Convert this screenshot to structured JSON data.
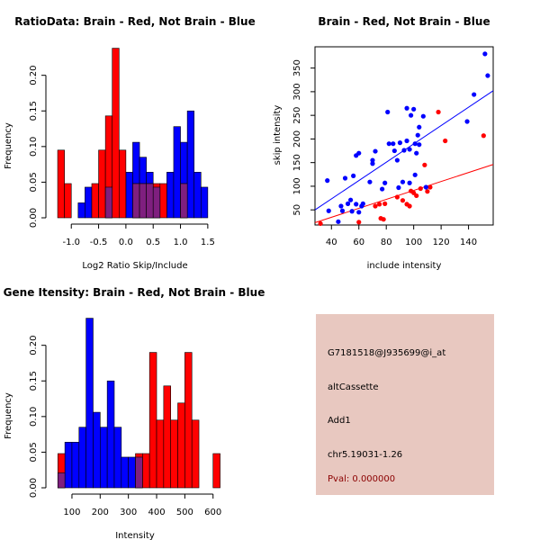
{
  "colors": {
    "brain": "#ff0000",
    "not_brain": "#0000ff",
    "overlap": "#7f1f7f",
    "info_panel": "#e8c8c0",
    "pval": "#8b0000"
  },
  "chart_data": [
    {
      "id": "ratio",
      "type": "bar",
      "title": "RatioData: Brain - Red, Not Brain - Blue",
      "xlabel": "Log2 Ratio Skip/Include",
      "ylabel": "Frequency",
      "xlim": [
        -1.35,
        1.7
      ],
      "ylim": [
        0,
        0.24
      ],
      "xticks": [
        -1.0,
        -0.5,
        0.0,
        0.5,
        1.0,
        1.5
      ],
      "xtick_labels": [
        "-1.0",
        "-0.5",
        "0.0",
        "0.5",
        "1.0",
        "1.5"
      ],
      "yticks": [
        0.0,
        0.05,
        0.1,
        0.15,
        0.2
      ],
      "ytick_labels": [
        "0.00",
        "0.05",
        "0.10",
        "0.15",
        "0.20"
      ],
      "bin_width": 0.125,
      "series": [
        {
          "name": "Brain",
          "color": "red",
          "bins": [
            [
              -1.25,
              0.095
            ],
            [
              -1.125,
              0.048
            ],
            [
              -0.625,
              0.048
            ],
            [
              -0.5,
              0.095
            ],
            [
              -0.375,
              0.143
            ],
            [
              -0.25,
              0.238
            ],
            [
              -0.125,
              0.095
            ],
            [
              0.125,
              0.048
            ],
            [
              0.25,
              0.048
            ],
            [
              0.375,
              0.048
            ],
            [
              0.5,
              0.048
            ],
            [
              0.625,
              0.048
            ],
            [
              1.0,
              0.048
            ]
          ]
        },
        {
          "name": "Not Brain",
          "color": "blue",
          "bins": [
            [
              -0.875,
              0.021
            ],
            [
              -0.75,
              0.043
            ],
            [
              -0.375,
              0.043
            ],
            [
              0.0,
              0.064
            ],
            [
              0.125,
              0.106
            ],
            [
              0.25,
              0.085
            ],
            [
              0.375,
              0.064
            ],
            [
              0.5,
              0.043
            ],
            [
              0.75,
              0.064
            ],
            [
              0.875,
              0.128
            ],
            [
              1.0,
              0.106
            ],
            [
              1.125,
              0.15
            ],
            [
              1.25,
              0.064
            ],
            [
              1.375,
              0.043
            ]
          ]
        }
      ]
    },
    {
      "id": "scatter",
      "type": "scatter",
      "title": "Brain - Red, Not Brain - Blue",
      "xlabel": "include intensity",
      "ylabel": "skip intensity",
      "xlim": [
        28,
        158
      ],
      "ylim": [
        18,
        395
      ],
      "xticks": [
        40,
        60,
        80,
        100,
        120,
        140
      ],
      "xtick_labels": [
        "40",
        "60",
        "80",
        "100",
        "120",
        "140"
      ],
      "yticks": [
        50,
        100,
        150,
        200,
        250,
        300,
        350
      ],
      "ytick_labels": [
        "50",
        "100",
        "150",
        "200",
        "250",
        "300",
        "350"
      ],
      "series": [
        {
          "name": "Brain",
          "color": "red",
          "points": [
            [
              32,
              21
            ],
            [
              60,
              24
            ],
            [
              76,
              32
            ],
            [
              78,
              30
            ],
            [
              72,
              58
            ],
            [
              75,
              62
            ],
            [
              79,
              63
            ],
            [
              88,
              77
            ],
            [
              92,
              70
            ],
            [
              95,
              62
            ],
            [
              97,
              58
            ],
            [
              98,
              90
            ],
            [
              100,
              86
            ],
            [
              102,
              80
            ],
            [
              105,
              95
            ],
            [
              108,
              145
            ],
            [
              110,
              89
            ],
            [
              112,
              98
            ],
            [
              118,
              257
            ],
            [
              123,
              196
            ],
            [
              151,
              207
            ]
          ],
          "fit": [
            [
              28,
              23
            ],
            [
              158,
              146
            ]
          ]
        },
        {
          "name": "Not Brain",
          "color": "blue",
          "points": [
            [
              37,
              112
            ],
            [
              38,
              48
            ],
            [
              45,
              25
            ],
            [
              47,
              58
            ],
            [
              48,
              48
            ],
            [
              50,
              117
            ],
            [
              52,
              63
            ],
            [
              54,
              71
            ],
            [
              55,
              47
            ],
            [
              56,
              122
            ],
            [
              58,
              62
            ],
            [
              58,
              165
            ],
            [
              60,
              170
            ],
            [
              60,
              45
            ],
            [
              62,
              58
            ],
            [
              63,
              63
            ],
            [
              68,
              109
            ],
            [
              70,
              148
            ],
            [
              70,
              155
            ],
            [
              72,
              174
            ],
            [
              77,
              94
            ],
            [
              79,
              107
            ],
            [
              81,
              257
            ],
            [
              82,
              190
            ],
            [
              85,
              190
            ],
            [
              86,
              175
            ],
            [
              88,
              155
            ],
            [
              89,
              97
            ],
            [
              90,
              192
            ],
            [
              92,
              109
            ],
            [
              93,
              176
            ],
            [
              95,
              265
            ],
            [
              95,
              196
            ],
            [
              97,
              178
            ],
            [
              97,
              107
            ],
            [
              98,
              250
            ],
            [
              100,
              263
            ],
            [
              101,
              190
            ],
            [
              101,
              124
            ],
            [
              102,
              170
            ],
            [
              103,
              208
            ],
            [
              104,
              225
            ],
            [
              104,
              188
            ],
            [
              107,
              248
            ],
            [
              109,
              98
            ],
            [
              139,
              237
            ],
            [
              144,
              294
            ],
            [
              152,
              380
            ],
            [
              154,
              334
            ]
          ],
          "fit": [
            [
              28,
              50
            ],
            [
              158,
              302
            ]
          ]
        }
      ]
    },
    {
      "id": "gene",
      "type": "bar",
      "title": "Gene Itensity: Brain - Red, Not Brain - Blue",
      "xlabel": "Intensity",
      "ylabel": "Frequency",
      "xlim": [
        30,
        620
      ],
      "ylim": [
        0,
        0.24
      ],
      "xticks": [
        100,
        200,
        300,
        400,
        500,
        600
      ],
      "xtick_labels": [
        "100",
        "200",
        "300",
        "400",
        "500",
        "600"
      ],
      "yticks": [
        0.0,
        0.05,
        0.1,
        0.15,
        0.2
      ],
      "ytick_labels": [
        "0.00",
        "0.05",
        "0.10",
        "0.15",
        "0.20"
      ],
      "bin_width": 25,
      "series": [
        {
          "name": "Brain",
          "color": "red",
          "bins": [
            [
              50,
              0.048
            ],
            [
              325,
              0.048
            ],
            [
              350,
              0.048
            ],
            [
              375,
              0.19
            ],
            [
              400,
              0.095
            ],
            [
              425,
              0.143
            ],
            [
              450,
              0.095
            ],
            [
              475,
              0.119
            ],
            [
              500,
              0.19
            ],
            [
              525,
              0.095
            ],
            [
              600,
              0.048
            ]
          ]
        },
        {
          "name": "Not Brain",
          "color": "blue",
          "bins": [
            [
              50,
              0.021
            ],
            [
              75,
              0.064
            ],
            [
              100,
              0.064
            ],
            [
              125,
              0.085
            ],
            [
              150,
              0.238
            ],
            [
              175,
              0.106
            ],
            [
              200,
              0.085
            ],
            [
              225,
              0.15
            ],
            [
              250,
              0.085
            ],
            [
              275,
              0.043
            ],
            [
              300,
              0.043
            ],
            [
              325,
              0.043
            ]
          ]
        }
      ]
    }
  ],
  "info": {
    "probe": "G7181518@J935699@i_at",
    "event_type": "altCassette",
    "gene": "Add1",
    "location": "chr5.19031-1.26",
    "pval": "Pval: 0.000000"
  }
}
